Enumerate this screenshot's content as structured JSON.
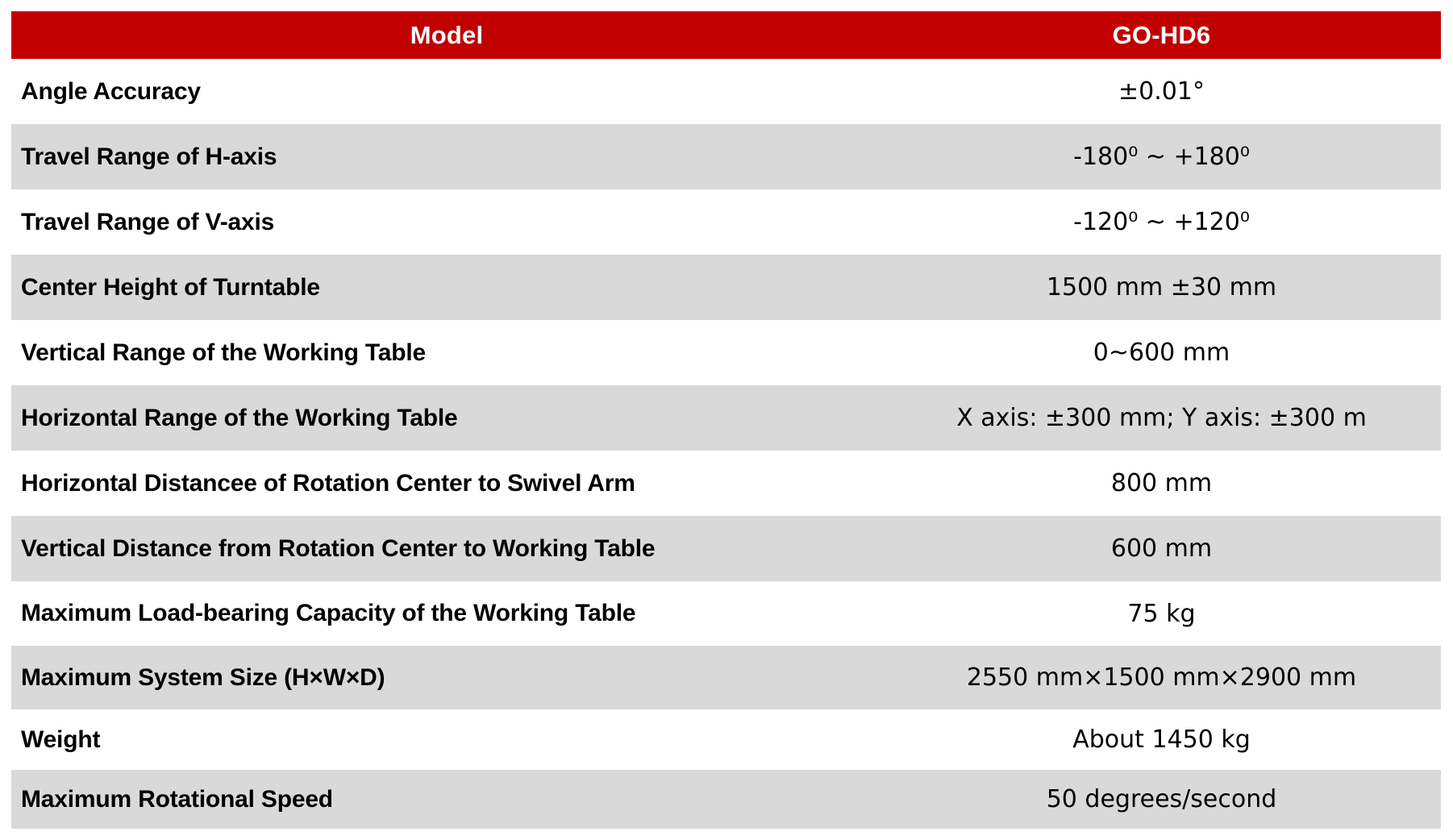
{
  "table": {
    "header": {
      "model_label": "Model",
      "model_value": "GO-HD6"
    },
    "rows": [
      {
        "label": "Angle Accuracy",
        "value": "±0.01°"
      },
      {
        "label": "Travel Range of H-axis",
        "value": "-180⁰ ~ +180⁰"
      },
      {
        "label": "Travel Range of V-axis",
        "value": "-120⁰ ~ +120⁰"
      },
      {
        "label": "Center Height of Turntable",
        "value": "1500 mm ±30 mm"
      },
      {
        "label": "Vertical Range of the Working Table",
        "value": "0~600 mm"
      },
      {
        "label": "Horizontal Range of the Working Table",
        "value": "X axis: ±300 mm; Y axis: ±300 m"
      },
      {
        "label": "Horizontal Distancee of Rotation Center to Swivel Arm",
        "value": "800 mm"
      },
      {
        "label": "Vertical Distance from Rotation Center to Working Table",
        "value": "600 mm"
      },
      {
        "label": "Maximum Load-bearing Capacity of the Working Table",
        "value": "75 kg"
      },
      {
        "label": "Maximum System Size (H×W×D)",
        "value": "2550 mm×1500 mm×2900 mm"
      },
      {
        "label": "Weight",
        "value": "About 1450 kg"
      },
      {
        "label": "Maximum Rotational Speed",
        "value": "50 degrees/second"
      }
    ]
  },
  "colors": {
    "header_bg": "#C00000",
    "header_text": "#FFFFFF",
    "row_bg": "#FFFFFF",
    "row_alt_bg": "#D9D9D9",
    "text": "#000000"
  }
}
